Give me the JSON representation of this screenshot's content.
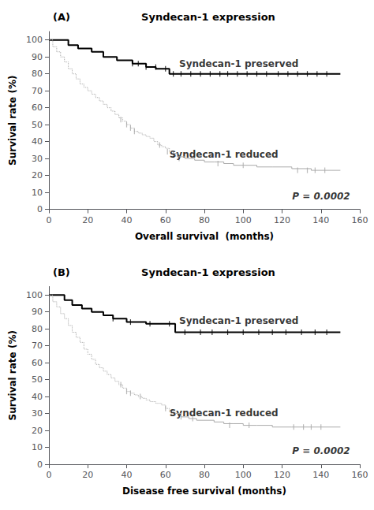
{
  "chart_data": [
    {
      "type": "step",
      "panel_label": "(A)",
      "title": "Syndecan-1 expression",
      "xlabel": "Overall survival  (months)",
      "ylabel": "Survival rate (%)",
      "xlim": [
        0,
        160
      ],
      "ylim": [
        0,
        105
      ],
      "xticks": [
        0,
        20,
        40,
        60,
        80,
        100,
        120,
        140,
        160
      ],
      "yticks": [
        0,
        10,
        20,
        30,
        40,
        50,
        60,
        70,
        80,
        90,
        100
      ],
      "grid": false,
      "series": [
        {
          "type": "step",
          "name": "Syndecan-1 preserved",
          "color": "#000000",
          "line_style": "solid",
          "x": [
            0,
            5,
            10,
            15,
            22,
            28,
            35,
            43,
            50,
            55,
            60,
            62,
            150
          ],
          "values": [
            100,
            100,
            97,
            95,
            93,
            90,
            88,
            86,
            84,
            83,
            83,
            80,
            80
          ]
        },
        {
          "type": "scatter",
          "marker": "|",
          "color": "#000000",
          "x": [
            43,
            46,
            50,
            55,
            60,
            64,
            68,
            73,
            78,
            83,
            88,
            92,
            97,
            102,
            107,
            112,
            118,
            123,
            128,
            133,
            138,
            143
          ],
          "values": [
            86,
            86,
            84,
            84,
            83,
            80,
            80,
            80,
            80,
            80,
            80,
            80,
            80,
            80,
            80,
            80,
            80,
            80,
            80,
            80,
            80,
            80
          ]
        },
        {
          "type": "step",
          "name": "Syndecan-1 reduced",
          "color": "#aaaaaa",
          "line_style": "dotted",
          "x": [
            0,
            2,
            4,
            6,
            8,
            10,
            12,
            14,
            16,
            18,
            20,
            22,
            24,
            26,
            28,
            30,
            32,
            34,
            36,
            38,
            40,
            42,
            44,
            46,
            48,
            50,
            52,
            54,
            56,
            58,
            60,
            62,
            64
          ],
          "values": [
            100,
            96,
            93,
            90,
            87,
            83,
            80,
            77,
            74,
            72,
            70,
            68,
            66,
            64,
            62,
            60,
            58,
            56,
            54,
            52,
            50,
            48,
            46,
            45,
            44,
            43,
            42,
            40,
            38,
            37,
            36,
            34,
            33
          ]
        },
        {
          "type": "step",
          "name": "Syndecan-1 reduced",
          "color": "#aaaaaa",
          "line_style": "solid",
          "x": [
            64,
            66,
            70,
            75,
            80,
            85,
            90,
            95,
            100,
            107,
            115,
            125,
            135,
            145,
            150
          ],
          "values": [
            33,
            31,
            30,
            29,
            28,
            28,
            27,
            26,
            26,
            25,
            25,
            24,
            23,
            23,
            23
          ]
        },
        {
          "type": "scatter",
          "marker": "|",
          "color": "#aaaaaa",
          "x": [
            37,
            40,
            42,
            44,
            57,
            61,
            64,
            67,
            87,
            100,
            128,
            133,
            137,
            142
          ],
          "values": [
            53,
            50,
            48,
            46,
            38,
            34,
            32,
            30,
            27,
            26,
            23,
            23,
            23,
            23
          ]
        }
      ],
      "annotations": [
        {
          "text": "Syndecan-1 preserved",
          "x": 67,
          "y": 83
        },
        {
          "text": "Syndecan-1 reduced",
          "x": 62,
          "y": 35
        }
      ],
      "p_value": {
        "text": "P = 0.0002",
        "x": 155,
        "y": 5
      }
    },
    {
      "type": "step",
      "panel_label": "(B)",
      "title": "Syndecan-1 expression",
      "xlabel": "Disease free survival (months)",
      "ylabel": "Survival rate (%)",
      "xlim": [
        0,
        160
      ],
      "ylim": [
        0,
        105
      ],
      "xticks": [
        0,
        20,
        40,
        60,
        80,
        100,
        120,
        140,
        160
      ],
      "yticks": [
        0,
        10,
        20,
        30,
        40,
        50,
        60,
        70,
        80,
        90,
        100
      ],
      "grid": false,
      "series": [
        {
          "type": "step",
          "name": "Syndecan-1 preserved",
          "color": "#000000",
          "line_style": "solid",
          "x": [
            0,
            4,
            8,
            12,
            17,
            22,
            28,
            33,
            40,
            50,
            60,
            65,
            150
          ],
          "values": [
            100,
            100,
            97,
            94,
            92,
            90,
            88,
            86,
            84,
            83,
            83,
            78,
            78
          ]
        },
        {
          "type": "scatter",
          "marker": "|",
          "color": "#000000",
          "x": [
            33,
            42,
            52,
            62,
            70,
            78,
            84,
            92,
            100,
            108,
            115,
            122,
            130,
            137,
            143
          ],
          "values": [
            86,
            84,
            83,
            83,
            78,
            78,
            78,
            78,
            78,
            78,
            78,
            78,
            78,
            78,
            78
          ]
        },
        {
          "type": "step",
          "name": "Syndecan-1 reduced",
          "color": "#aaaaaa",
          "line_style": "dotted",
          "x": [
            0,
            2,
            4,
            6,
            8,
            10,
            12,
            14,
            16,
            18,
            20,
            22,
            24,
            26,
            28,
            30,
            32,
            34,
            36,
            38,
            40,
            42,
            44,
            46,
            48,
            50,
            52,
            55,
            58,
            60,
            62,
            65
          ],
          "values": [
            100,
            96,
            93,
            89,
            86,
            82,
            78,
            75,
            72,
            68,
            65,
            62,
            59,
            57,
            55,
            53,
            51,
            49,
            47,
            45,
            43,
            42,
            41,
            40,
            39,
            38,
            37,
            36,
            35,
            33,
            31,
            30
          ]
        },
        {
          "type": "step",
          "name": "Syndecan-1 reduced",
          "color": "#aaaaaa",
          "line_style": "solid",
          "x": [
            65,
            68,
            72,
            76,
            80,
            85,
            90,
            95,
            100,
            107,
            115,
            125,
            135,
            145,
            150
          ],
          "values": [
            30,
            28,
            27,
            26,
            26,
            25,
            24,
            24,
            23,
            23,
            22,
            22,
            22,
            22,
            22
          ]
        },
        {
          "type": "scatter",
          "marker": "|",
          "color": "#aaaaaa",
          "x": [
            37,
            40,
            42,
            47,
            60,
            63,
            68,
            74,
            93,
            103,
            126,
            131,
            135,
            140
          ],
          "values": [
            47,
            43,
            42,
            40,
            33,
            30,
            28,
            27,
            23,
            23,
            22,
            22,
            22,
            22
          ]
        }
      ],
      "annotations": [
        {
          "text": "Syndecan-1 preserved",
          "x": 67,
          "y": 82
        },
        {
          "text": "Syndecan-1 reduced",
          "x": 62,
          "y": 33
        }
      ],
      "p_value": {
        "text": "P = 0.0002",
        "x": 155,
        "y": 5
      }
    }
  ]
}
